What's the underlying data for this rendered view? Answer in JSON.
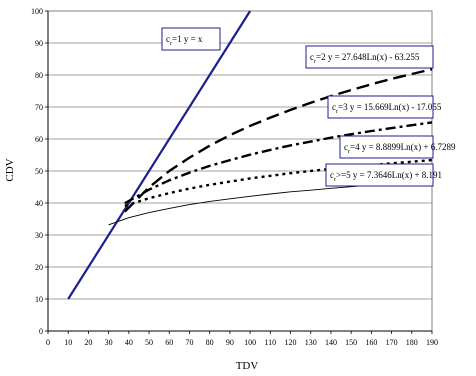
{
  "chart_data": {
    "type": "line",
    "xlabel": "TDV",
    "ylabel": "CDV",
    "xlim": [
      0,
      190
    ],
    "ylim": [
      0,
      100
    ],
    "x_ticks": [
      0,
      10,
      20,
      30,
      40,
      50,
      60,
      70,
      80,
      90,
      100,
      110,
      120,
      130,
      140,
      150,
      160,
      170,
      180,
      190
    ],
    "y_ticks": [
      0,
      10,
      20,
      30,
      40,
      50,
      60,
      70,
      80,
      90,
      100
    ],
    "grid": "horizontal",
    "legend": "none",
    "series": [
      {
        "c_label": "c",
        "c_sub": "r",
        "c_rel": "=1",
        "equation": "y = x",
        "color": "#1c1f8c",
        "style": "solid-thick",
        "x": [
          10,
          100
        ],
        "y": [
          10,
          100
        ]
      },
      {
        "c_label": "c",
        "c_sub": "r",
        "c_rel": "=2",
        "equation": "y = 27.648Ln(x) - 63.255",
        "color": "#000000",
        "style": "long-dash",
        "x": [
          38,
          50,
          60,
          70,
          80,
          90,
          100,
          110,
          120,
          130,
          140,
          150,
          160,
          170,
          180,
          190
        ],
        "y": [
          37.3,
          44.9,
          50.0,
          54.2,
          57.9,
          61.2,
          64.1,
          66.7,
          69.1,
          71.3,
          73.4,
          75.3,
          77.1,
          78.8,
          80.3,
          81.8
        ]
      },
      {
        "c_label": "c",
        "c_sub": "r",
        "c_rel": "=3",
        "equation": "y = 15.669Ln(x) - 17.055",
        "color": "#000000",
        "style": "dash-dot",
        "x": [
          38,
          50,
          60,
          70,
          80,
          90,
          100,
          110,
          120,
          130,
          140,
          150,
          160,
          170,
          180,
          190
        ],
        "y": [
          39.9,
          44.2,
          47.1,
          49.5,
          51.6,
          53.4,
          55.1,
          56.6,
          58.0,
          59.2,
          60.4,
          61.5,
          62.5,
          63.4,
          64.3,
          65.2
        ]
      },
      {
        "c_label": "c",
        "c_sub": "r",
        "c_rel": "=4",
        "equation": "y = 8.8899Ln(x) + 6.7289",
        "color": "#000000",
        "style": "dotted",
        "x": [
          38,
          50,
          60,
          70,
          80,
          90,
          100,
          110,
          120,
          130,
          140,
          150,
          160,
          170,
          180,
          190
        ],
        "y": [
          39.1,
          41.5,
          43.1,
          44.5,
          45.7,
          46.7,
          47.7,
          48.5,
          49.3,
          50.0,
          50.7,
          51.3,
          51.8,
          52.4,
          52.9,
          53.4
        ]
      },
      {
        "c_label": "c",
        "c_sub": "r",
        "c_rel": ">=5",
        "equation": "y = 7.3646Ln(x) + 8.191",
        "color": "#000000",
        "style": "thin",
        "x": [
          30,
          40,
          50,
          60,
          70,
          80,
          90,
          100,
          110,
          120,
          130,
          140,
          150,
          160,
          170,
          180,
          190
        ],
        "y": [
          33.2,
          35.4,
          37.0,
          38.3,
          39.5,
          40.5,
          41.3,
          42.1,
          42.8,
          43.5,
          44.0,
          44.6,
          45.1,
          45.6,
          46.0,
          46.4,
          46.8
        ]
      }
    ]
  }
}
